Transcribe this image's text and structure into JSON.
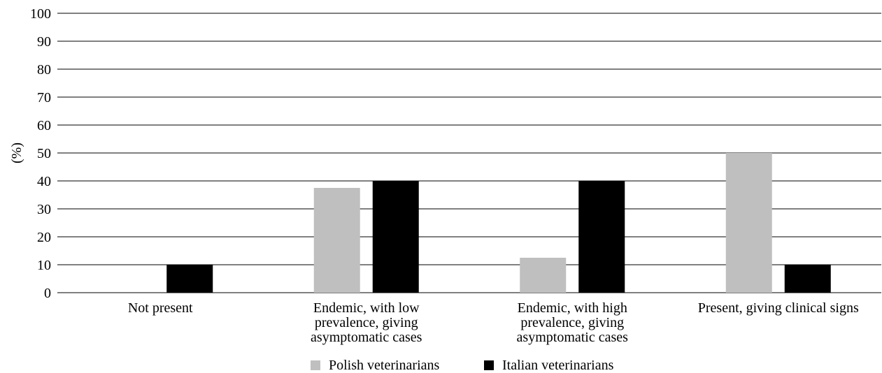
{
  "chart_data": {
    "type": "bar",
    "ylabel": "(%)",
    "ylim": [
      0,
      100
    ],
    "yticks": [
      0,
      10,
      20,
      30,
      40,
      50,
      60,
      70,
      80,
      90,
      100
    ],
    "grid": true,
    "legend_position": "bottom",
    "categories": [
      [
        "Not present"
      ],
      [
        "Endemic, with low",
        "prevalence, giving",
        "asymptomatic cases"
      ],
      [
        "Endemic, with high",
        "prevalence, giving",
        "asymptomatic cases"
      ],
      [
        "Present, giving clinical signs"
      ]
    ],
    "series": [
      {
        "name": "Polish veterinarians",
        "color": "#bfbfbf",
        "values": [
          0,
          37.5,
          12.5,
          50
        ]
      },
      {
        "name": "Italian veterinarians",
        "color": "#000000",
        "values": [
          10,
          40,
          40,
          10
        ]
      }
    ]
  }
}
